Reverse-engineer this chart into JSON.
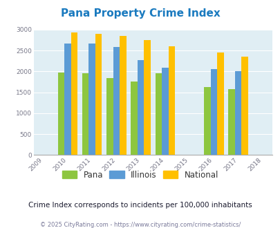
{
  "title": "Pana Property Crime Index",
  "all_years": [
    2009,
    2010,
    2011,
    2012,
    2013,
    2014,
    2015,
    2016,
    2017,
    2018
  ],
  "data_years": [
    2010,
    2011,
    2012,
    2013,
    2014,
    2016,
    2017
  ],
  "pana": [
    1975,
    1960,
    1840,
    1760,
    1960,
    1630,
    1580
  ],
  "illinois": [
    2660,
    2665,
    2580,
    2275,
    2090,
    2055,
    2010
  ],
  "national": [
    2940,
    2905,
    2855,
    2745,
    2605,
    2460,
    2360
  ],
  "pana_color": "#8dc63f",
  "illinois_color": "#5b9bd5",
  "national_color": "#ffc000",
  "bg_color": "#e0eef4",
  "ylim": [
    0,
    3000
  ],
  "yticks": [
    0,
    500,
    1000,
    1500,
    2000,
    2500,
    3000
  ],
  "subtitle": "Crime Index corresponds to incidents per 100,000 inhabitants",
  "footer": "© 2025 CityRating.com - https://www.cityrating.com/crime-statistics/",
  "bar_width": 0.27,
  "title_color": "#1a7abf",
  "subtitle_color": "#1a1a2e",
  "footer_color": "#7a7a9a"
}
